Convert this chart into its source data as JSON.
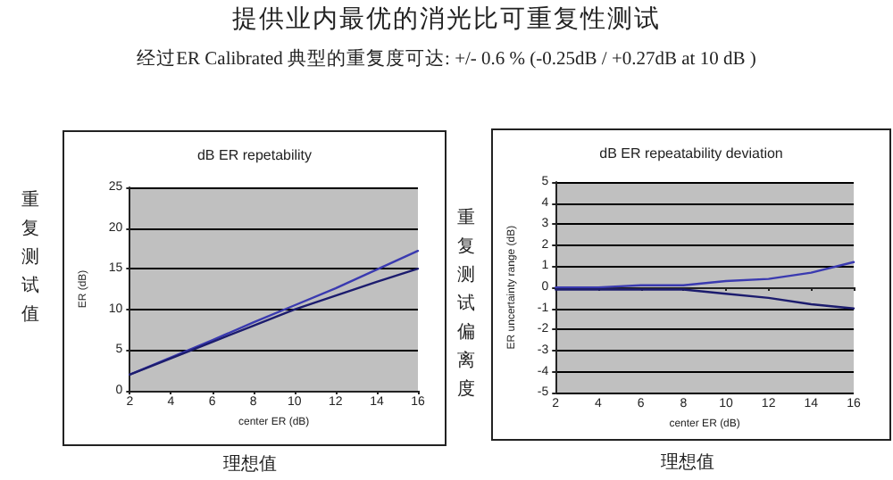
{
  "chart_data": [
    {
      "type": "line",
      "title": "dB ER repetability",
      "xlabel": "center ER (dB)",
      "ylabel": "ER (dB)",
      "annotations": [
        "提供业内最优的消光比可重复性测试",
        "经过ER Calibrated  典型的重复度可达: +/- 0.6 % (-0.25dB / +0.27dB at 10 dB )",
        "重复测试值",
        "理想值"
      ],
      "x": [
        2,
        4,
        6,
        8,
        10,
        12,
        14,
        16
      ],
      "series": [
        {
          "color": "#3a3ab0",
          "values": [
            2,
            4.1,
            6.2,
            8.4,
            10.5,
            12.6,
            14.9,
            17.2
          ]
        },
        {
          "color": "#1c1c6e",
          "values": [
            2,
            4,
            6,
            8,
            10,
            11.7,
            13.4,
            15
          ]
        }
      ],
      "xlim": [
        2,
        16
      ],
      "xticks": [
        2,
        4,
        6,
        8,
        10,
        12,
        14,
        16
      ],
      "ylim": [
        0,
        25
      ],
      "yticks": [
        0,
        5,
        10,
        15,
        20,
        25
      ],
      "grid": "y",
      "marker": "none",
      "line_style": "solid"
    },
    {
      "type": "line",
      "title": "dB ER repeatability deviation",
      "xlabel": "center ER (dB)",
      "ylabel": "ER uncertainty range (dB)",
      "annotations": [
        "重复测试偏离度",
        "理想值"
      ],
      "x": [
        2,
        4,
        6,
        8,
        10,
        12,
        14,
        16
      ],
      "series": [
        {
          "color": "#3a3ab0",
          "values": [
            0,
            0,
            0.1,
            0.1,
            0.3,
            0.4,
            0.7,
            1.2
          ]
        },
        {
          "color": "#1c1c6e",
          "values": [
            -0.1,
            -0.1,
            -0.1,
            -0.1,
            -0.3,
            -0.5,
            -0.8,
            -1
          ]
        }
      ],
      "xlim": [
        2,
        16
      ],
      "xticks": [
        2,
        4,
        6,
        8,
        10,
        12,
        14,
        16
      ],
      "ylim": [
        -5,
        5
      ],
      "yticks": [
        -5,
        -4,
        -3,
        -2,
        -1,
        0,
        1,
        2,
        3,
        4,
        5
      ],
      "grid": "y",
      "marker": "none",
      "line_style": "solid"
    }
  ]
}
